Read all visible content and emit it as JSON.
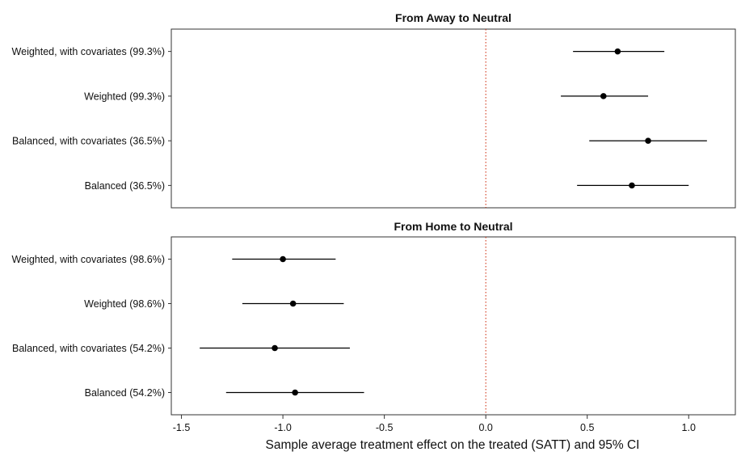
{
  "chart_data": {
    "type": "forest",
    "xlabel": "Sample average treatment effect on the treated (SATT) and 95% CI",
    "xlim": [
      -1.55,
      1.23
    ],
    "x_ticks": [
      -1.5,
      -1.0,
      -0.5,
      0.0,
      0.5,
      1.0
    ],
    "x_tick_labels": [
      "-1.5",
      "-1.0",
      "-0.5",
      "0.0",
      "0.5",
      "1.0"
    ],
    "reference_line": 0.0,
    "reference_line_color": "#cc2200",
    "point_color": "#000000",
    "panels": [
      {
        "title": "From Away to Neutral",
        "rows": [
          {
            "label": "Weighted, with covariates (99.3%)",
            "estimate": 0.65,
            "ci": [
              0.43,
              0.88
            ]
          },
          {
            "label": "Weighted (99.3%)",
            "estimate": 0.58,
            "ci": [
              0.37,
              0.8
            ]
          },
          {
            "label": "Balanced, with covariates (36.5%)",
            "estimate": 0.8,
            "ci": [
              0.51,
              1.09
            ]
          },
          {
            "label": "Balanced (36.5%)",
            "estimate": 0.72,
            "ci": [
              0.45,
              1.0
            ]
          }
        ]
      },
      {
        "title": "From Home to Neutral",
        "rows": [
          {
            "label": "Weighted, with covariates (98.6%)",
            "estimate": -1.0,
            "ci": [
              -1.25,
              -0.74
            ]
          },
          {
            "label": "Weighted (98.6%)",
            "estimate": -0.95,
            "ci": [
              -1.2,
              -0.7
            ]
          },
          {
            "label": "Balanced, with covariates (54.2%)",
            "estimate": -1.04,
            "ci": [
              -1.41,
              -0.67
            ]
          },
          {
            "label": "Balanced (54.2%)",
            "estimate": -0.94,
            "ci": [
              -1.28,
              -0.6
            ]
          }
        ]
      }
    ]
  }
}
